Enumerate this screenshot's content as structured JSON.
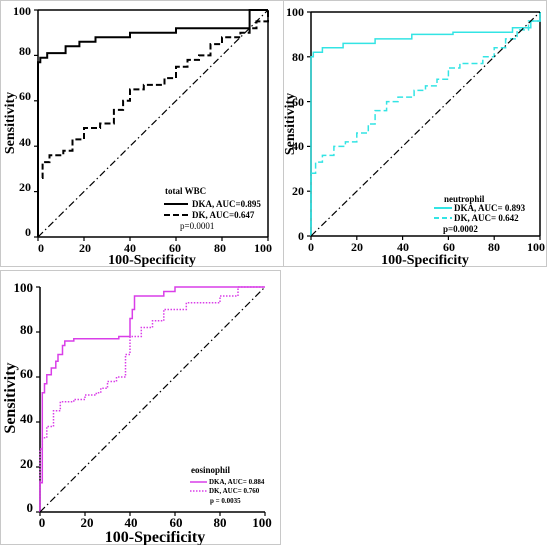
{
  "chart_data": [
    {
      "type": "line",
      "xlabel": "100-Specificity",
      "ylabel": "Sensitivity",
      "xlim": [
        0,
        100
      ],
      "ylim": [
        0,
        100
      ],
      "xticks": [
        "0",
        "20",
        "40",
        "60",
        "80",
        "100"
      ],
      "yticks": [
        "0",
        "20",
        "40",
        "60",
        "80",
        "100"
      ],
      "legend_title": "total WBC",
      "p_value": "p=0.0001",
      "legend_position": "bottom-right",
      "series": [
        {
          "name": "DKA, AUC=0.895",
          "color": "#000000",
          "dash": "solid",
          "x": [
            0,
            0,
            1,
            1,
            4,
            4,
            12,
            12,
            18,
            18,
            25,
            25,
            40,
            40,
            60,
            60,
            92,
            92,
            100,
            100
          ],
          "y": [
            0,
            77,
            77,
            79,
            79,
            81,
            81,
            84,
            84,
            86,
            86,
            88,
            88,
            90,
            90,
            92,
            92,
            100,
            100,
            100
          ]
        },
        {
          "name": "DK, AUC=0.647",
          "color": "#000000",
          "dash": "dashed",
          "x": [
            0,
            0,
            2,
            2,
            5,
            5,
            11,
            11,
            15,
            15,
            20,
            20,
            27,
            27,
            33,
            33,
            37,
            37,
            40,
            40,
            46,
            46,
            55,
            55,
            60,
            60,
            65,
            65,
            70,
            70,
            75,
            75,
            80,
            80,
            88,
            88,
            92,
            92,
            95,
            95,
            100,
            100
          ],
          "y": [
            0,
            26,
            26,
            33,
            33,
            36,
            36,
            38,
            38,
            43,
            43,
            48,
            48,
            50,
            50,
            56,
            56,
            60,
            60,
            65,
            65,
            67,
            67,
            70,
            70,
            75,
            75,
            78,
            78,
            80,
            80,
            85,
            85,
            88,
            88,
            90,
            90,
            92,
            92,
            95,
            95,
            100
          ]
        },
        {
          "name": "",
          "color": "#000000",
          "dash": "dashdot",
          "x": [
            0,
            100
          ],
          "y": [
            0,
            100
          ]
        }
      ]
    },
    {
      "type": "line",
      "xlabel": "100-Specificity",
      "ylabel": "Sensitivity",
      "xlim": [
        0,
        100
      ],
      "ylim": [
        0,
        100
      ],
      "xticks": [
        "0",
        "20",
        "40",
        "60",
        "80",
        "100"
      ],
      "yticks": [
        "0",
        "20",
        "40",
        "60",
        "80",
        "100"
      ],
      "legend_title": "neutrophil",
      "p_value": "p=0.0002",
      "legend_position": "bottom-right",
      "series": [
        {
          "name": "DKA, AUC= 0.893",
          "color": "#33e4e4",
          "dash": "solid",
          "x": [
            0,
            0,
            1,
            1,
            5,
            5,
            14,
            14,
            28,
            28,
            44,
            44,
            62,
            62,
            88,
            88,
            96,
            96,
            100,
            100
          ],
          "y": [
            0,
            80,
            80,
            82,
            82,
            84,
            84,
            86,
            86,
            88,
            88,
            90,
            90,
            91,
            91,
            93,
            93,
            96,
            96,
            100
          ]
        },
        {
          "name": "DK, AUC= 0.642",
          "color": "#33e4e4",
          "dash": "dashed",
          "x": [
            0,
            0,
            2,
            2,
            5,
            5,
            10,
            10,
            15,
            15,
            20,
            20,
            25,
            25,
            28,
            28,
            33,
            33,
            38,
            38,
            45,
            45,
            50,
            50,
            55,
            55,
            60,
            60,
            65,
            65,
            75,
            75,
            80,
            80,
            85,
            85,
            90,
            90,
            95,
            95,
            100,
            100
          ],
          "y": [
            0,
            28,
            28,
            33,
            33,
            36,
            36,
            40,
            40,
            42,
            42,
            46,
            46,
            50,
            50,
            56,
            56,
            60,
            60,
            62,
            62,
            65,
            65,
            67,
            67,
            70,
            70,
            75,
            75,
            77,
            77,
            80,
            80,
            84,
            84,
            88,
            88,
            92,
            92,
            96,
            96,
            100
          ]
        },
        {
          "name": "",
          "color": "#000000",
          "dash": "dashdot",
          "x": [
            0,
            100
          ],
          "y": [
            0,
            100
          ]
        }
      ]
    },
    {
      "type": "line",
      "xlabel": "100-Specificity",
      "ylabel": "Sensitivity",
      "xlim": [
        0,
        100
      ],
      "ylim": [
        0,
        100
      ],
      "xticks": [
        "0",
        "20",
        "40",
        "60",
        "80",
        "100"
      ],
      "yticks": [
        "0",
        "20",
        "40",
        "60",
        "80",
        "100"
      ],
      "legend_title": "eosinophil",
      "p_value": "p = 0.0035",
      "legend_position": "bottom-right",
      "series": [
        {
          "name": "DKA, AUC= 0.884",
          "color": "#d93ee8",
          "dash": "solid",
          "x": [
            0,
            0,
            1,
            1,
            2,
            2,
            3,
            3,
            5,
            5,
            7,
            7,
            8,
            8,
            10,
            10,
            11,
            11,
            15,
            15,
            25,
            25,
            35,
            35,
            40,
            40,
            41,
            41,
            42,
            42,
            55,
            55,
            60,
            60,
            80,
            80,
            95,
            95,
            100,
            100
          ],
          "y": [
            0,
            13,
            13,
            53,
            53,
            57,
            57,
            61,
            61,
            64,
            64,
            67,
            67,
            70,
            70,
            74,
            74,
            76,
            76,
            77,
            77,
            77,
            77,
            78,
            78,
            86,
            86,
            90,
            90,
            96,
            96,
            98,
            98,
            100,
            100,
            100,
            100,
            100,
            100,
            100
          ]
        },
        {
          "name": "DK, AUC= 0.760",
          "color": "#d93ee8",
          "dash": "dotted",
          "x": [
            0,
            0,
            1,
            1,
            3,
            3,
            6,
            6,
            9,
            9,
            15,
            15,
            20,
            20,
            25,
            25,
            27,
            27,
            30,
            30,
            34,
            34,
            38,
            38,
            40,
            40,
            45,
            45,
            50,
            50,
            55,
            55,
            65,
            65,
            80,
            80,
            88,
            88,
            100,
            100
          ],
          "y": [
            0,
            28,
            28,
            33,
            33,
            38,
            38,
            45,
            45,
            49,
            49,
            50,
            50,
            52,
            52,
            53,
            53,
            55,
            55,
            58,
            58,
            60,
            60,
            70,
            70,
            78,
            78,
            82,
            82,
            85,
            85,
            90,
            90,
            93,
            93,
            96,
            96,
            100,
            100,
            100
          ]
        },
        {
          "name": "",
          "color": "#000000",
          "dash": "dashdot",
          "x": [
            0,
            100
          ],
          "y": [
            0,
            100
          ]
        }
      ]
    }
  ]
}
